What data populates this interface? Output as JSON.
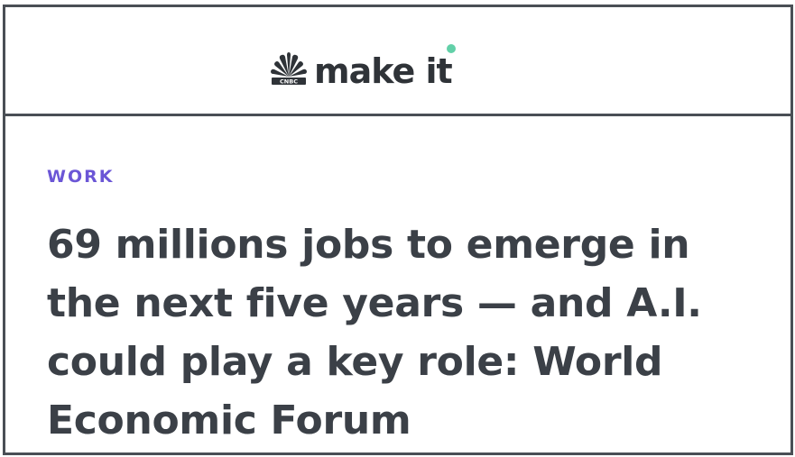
{
  "masthead": {
    "brand_mark": "CNBC",
    "brand_name": "make it",
    "icon": "nbc-peacock-icon",
    "colors": {
      "text": "#2f3338",
      "accent_dot": "#62d0a8"
    }
  },
  "article": {
    "section": "WORK",
    "headline": "69 millions jobs to emerge in the next five years — and A.I. could play a key role: World Economic Forum",
    "colors": {
      "section": "#6b56d6",
      "headline": "#3b4047",
      "border": "#4a4f55"
    }
  }
}
